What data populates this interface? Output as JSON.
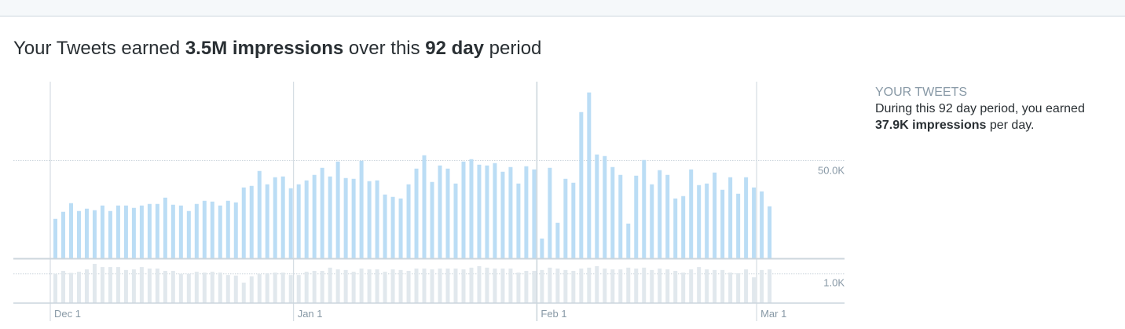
{
  "headline": {
    "prefix": "Your Tweets earned ",
    "impressions": "3.5M impressions",
    "middle": " over this ",
    "period": "92 day",
    "suffix": " period"
  },
  "summary": {
    "label": "YOUR TWEETS",
    "line1": "During this 92 day period, you earned",
    "per_day": "37.9K impressions",
    "per_day_suffix": " per day."
  },
  "colors": {
    "impressions_bar": "#bbddf5",
    "engagements_bar": "#e1e8ed",
    "grid": "#ccd6dd",
    "tick_text": "#8899a6"
  },
  "chart_data": [
    {
      "type": "bar",
      "series": [
        {
          "values": [
            20.3,
            23.9,
            28.3,
            24.3,
            25.5,
            24.7,
            27.1,
            24.3,
            27.1,
            27.1,
            25.9,
            27.1,
            27.9,
            27.9,
            31.1,
            27.5,
            27.1,
            24.3,
            27.9,
            29.5,
            29.1,
            27.1,
            29.5,
            28.7,
            36.3,
            37.1,
            44.7,
            37.9,
            41.5,
            41.9,
            35.9,
            37.9,
            39.9,
            42.7,
            46.3,
            41.9,
            49.5,
            41.1,
            40.7,
            49.9,
            39.5,
            39.9,
            32.7,
            31.5,
            30.7,
            37.9,
            45.9,
            52.7,
            39.1,
            47.5,
            45.9,
            38.3,
            49.5,
            50.7,
            47.9,
            47.5,
            48.7,
            44.3,
            46.7,
            38.3,
            47.1,
            45.5,
            10.3,
            46.3,
            18.3,
            40.7,
            38.7,
            74.7,
            84.7,
            53.1,
            52.3,
            46.7,
            42.7,
            17.9,
            42.3,
            50.3,
            37.9,
            45.1,
            42.7,
            30.7,
            31.9,
            45.5,
            37.5,
            38.3,
            43.9,
            35.1,
            41.5,
            33.1,
            41.5,
            36.3,
            34.3,
            26.7
          ]
        }
      ],
      "unit": "K",
      "y_gridline": 50,
      "y_tick_label": "50.0K",
      "x_tick_labels": [
        "Dec 1",
        "Jan 1",
        "Feb 1",
        "Mar 1"
      ],
      "x_tick_indices": [
        0,
        31,
        62,
        90
      ],
      "num_days": 92,
      "grid": true
    },
    {
      "type": "bar",
      "series": [
        {
          "values": [
            1.0,
            1.1,
            1.03,
            1.07,
            1.15,
            1.34,
            1.23,
            1.23,
            1.23,
            1.13,
            1.15,
            1.23,
            1.18,
            1.18,
            1.1,
            1.1,
            1.0,
            1.0,
            1.07,
            1.04,
            1.07,
            1.04,
            0.96,
            0.94,
            0.7,
            0.91,
            0.99,
            1.02,
            1.04,
            1.04,
            0.96,
            0.96,
            1.07,
            1.1,
            1.1,
            1.21,
            1.15,
            1.13,
            1.07,
            1.18,
            1.15,
            1.15,
            1.07,
            1.15,
            1.13,
            1.1,
            1.18,
            1.18,
            1.15,
            1.18,
            1.18,
            1.18,
            1.15,
            1.21,
            1.26,
            1.21,
            1.18,
            1.18,
            1.18,
            1.04,
            1.1,
            1.1,
            1.13,
            1.21,
            1.18,
            1.13,
            1.1,
            1.18,
            1.21,
            1.26,
            1.18,
            1.15,
            1.15,
            1.21,
            1.18,
            1.21,
            1.13,
            1.18,
            1.15,
            1.1,
            1.04,
            1.15,
            1.23,
            1.15,
            1.13,
            1.13,
            1.04,
            1.02,
            1.15,
            0.88,
            1.13,
            1.15
          ]
        }
      ],
      "unit": "K",
      "y_gridline": 1,
      "y_tick_label": "1.0K",
      "grid": true
    }
  ]
}
